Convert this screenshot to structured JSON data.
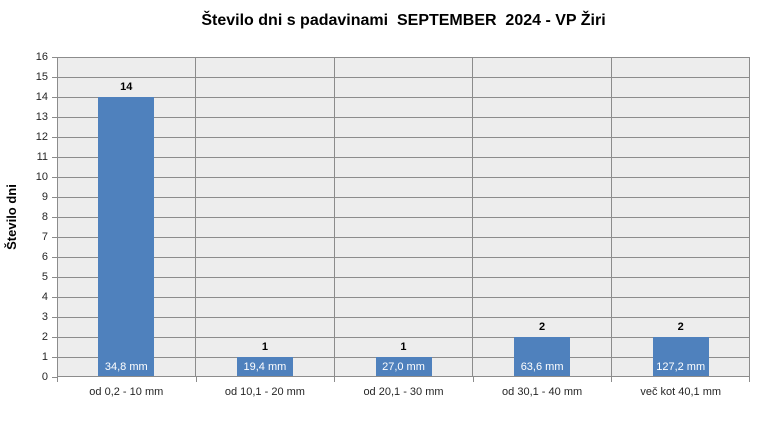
{
  "chart_data": {
    "type": "bar",
    "title": "Število dni s padavinami  SEPTEMBER  2024 - VP Žiri",
    "ylabel": "Število dni",
    "xlabel": "",
    "categories": [
      "od 0,2 - 10 mm",
      "od 10,1 - 20 mm",
      "od 20,1 - 30 mm",
      "od 30,1 - 40 mm",
      "več kot 40,1 mm"
    ],
    "values": [
      14,
      1,
      1,
      2,
      2
    ],
    "bar_value_labels": [
      "14",
      "1",
      "1",
      "2",
      "2"
    ],
    "bar_inner_labels": [
      "34,8 mm",
      "19,4 mm",
      "27,0 mm",
      "63,6 mm",
      "127,2 mm"
    ],
    "ylim": [
      0,
      16
    ],
    "yticks": [
      0,
      1,
      2,
      3,
      4,
      5,
      6,
      7,
      8,
      9,
      10,
      11,
      12,
      13,
      14,
      15,
      16
    ],
    "grid": true,
    "legend": "none",
    "colors": {
      "bar": "#4F81BD",
      "plot_background": "#EDEDED",
      "gridline": "#8C8C8C",
      "axis_text": "#262626",
      "title_text": "#000000",
      "inner_label_text": "#FFFFFF",
      "chart_background": "#FFFFFF"
    }
  }
}
